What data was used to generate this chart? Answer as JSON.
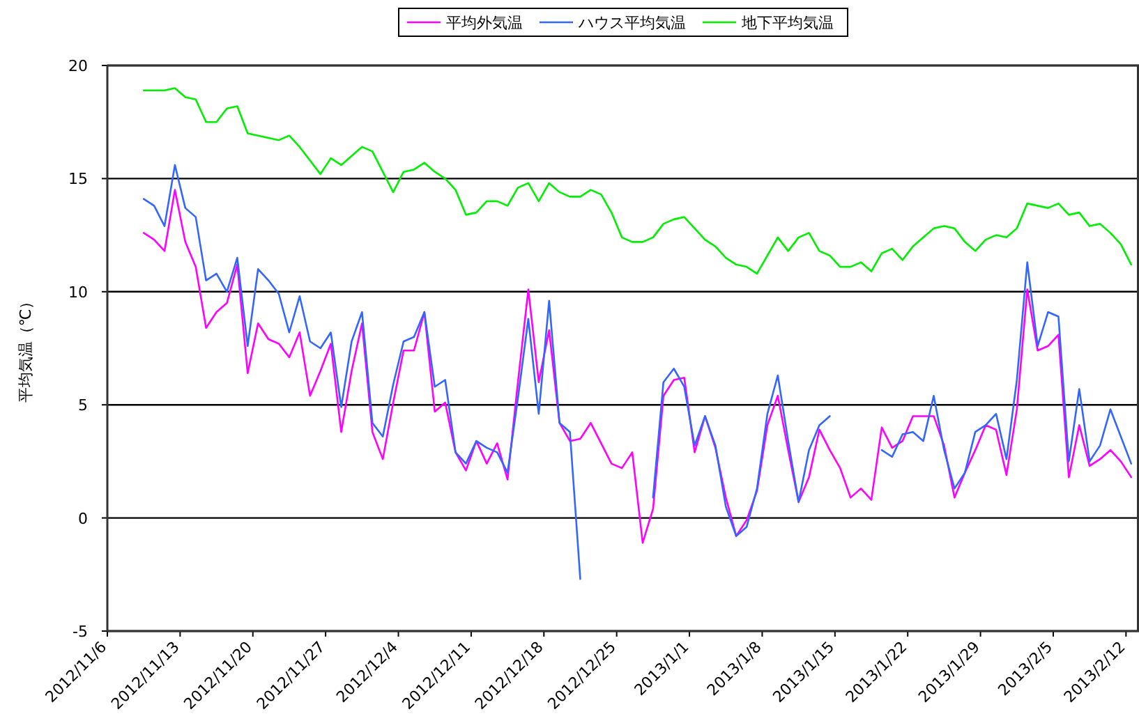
{
  "chart_data": {
    "type": "line",
    "ylabel": "平均気温（℃）",
    "legend": "top",
    "grid": "y",
    "xlim": [
      "2012-11-06",
      "2013-02-13T06:00"
    ],
    "xticks": [
      {
        "value": "2012-11-06",
        "label": "2012/11/6"
      },
      {
        "value": "2012-11-13",
        "label": "2012/11/13"
      },
      {
        "value": "2012-11-20",
        "label": "2012/11/20"
      },
      {
        "value": "2012-11-27",
        "label": "2012/11/27"
      },
      {
        "value": "2012-12-04",
        "label": "2012/12/4"
      },
      {
        "value": "2012-12-11",
        "label": "2012/12/11"
      },
      {
        "value": "2012-12-18",
        "label": "2012/12/18"
      },
      {
        "value": "2012-12-25",
        "label": "2012/12/25"
      },
      {
        "value": "2013-01-01",
        "label": "2013/1/1"
      },
      {
        "value": "2013-01-08",
        "label": "2013/1/8"
      },
      {
        "value": "2013-01-15",
        "label": "2013/1/15"
      },
      {
        "value": "2013-01-22",
        "label": "2013/1/22"
      },
      {
        "value": "2013-01-29",
        "label": "2013/1/29"
      },
      {
        "value": "2013-02-05",
        "label": "2013/2/5"
      },
      {
        "value": "2013-02-12",
        "label": "2013/2/12"
      }
    ],
    "ylim": [
      -5,
      20
    ],
    "yticks": [
      -5,
      0,
      5,
      10,
      15,
      20
    ],
    "x": [
      "2012-11-09T12:00",
      "2012-11-10T12:00",
      "2012-11-11T12:00",
      "2012-11-12T12:00",
      "2012-11-13T12:00",
      "2012-11-14T12:00",
      "2012-11-15T12:00",
      "2012-11-16T12:00",
      "2012-11-17T12:00",
      "2012-11-18T12:00",
      "2012-11-19T12:00",
      "2012-11-20T12:00",
      "2012-11-21T12:00",
      "2012-11-22T12:00",
      "2012-11-23T12:00",
      "2012-11-24T12:00",
      "2012-11-25T12:00",
      "2012-11-26T12:00",
      "2012-11-27T12:00",
      "2012-11-28T12:00",
      "2012-11-29T12:00",
      "2012-11-30T12:00",
      "2012-12-01T12:00",
      "2012-12-02T12:00",
      "2012-12-03T12:00",
      "2012-12-04T12:00",
      "2012-12-05T12:00",
      "2012-12-06T12:00",
      "2012-12-07T12:00",
      "2012-12-08T12:00",
      "2012-12-09T12:00",
      "2012-12-10T12:00",
      "2012-12-11T12:00",
      "2012-12-12T12:00",
      "2012-12-13T12:00",
      "2012-12-14T12:00",
      "2012-12-15T12:00",
      "2012-12-16T12:00",
      "2012-12-17T12:00",
      "2012-12-18T12:00",
      "2012-12-19T12:00",
      "2012-12-20T12:00",
      "2012-12-21T12:00",
      "2012-12-22T12:00",
      "2012-12-23T12:00",
      "2012-12-24T12:00",
      "2012-12-25T12:00",
      "2012-12-26T12:00",
      "2012-12-27T12:00",
      "2012-12-28T12:00",
      "2012-12-29T12:00",
      "2012-12-30T12:00",
      "2012-12-31T12:00",
      "2013-01-01T12:00",
      "2013-01-02T12:00",
      "2013-01-03T12:00",
      "2013-01-04T12:00",
      "2013-01-05T12:00",
      "2013-01-06T12:00",
      "2013-01-07T12:00",
      "2013-01-08T12:00",
      "2013-01-09T12:00",
      "2013-01-10T12:00",
      "2013-01-11T12:00",
      "2013-01-12T12:00",
      "2013-01-13T12:00",
      "2013-01-14T12:00",
      "2013-01-15T12:00",
      "2013-01-16T12:00",
      "2013-01-17T12:00",
      "2013-01-18T12:00",
      "2013-01-19T12:00",
      "2013-01-20T12:00",
      "2013-01-21T12:00",
      "2013-01-22T12:00",
      "2013-01-23T12:00",
      "2013-01-24T12:00",
      "2013-01-25T12:00",
      "2013-01-26T12:00",
      "2013-01-27T12:00",
      "2013-01-28T12:00",
      "2013-01-29T12:00",
      "2013-01-30T12:00",
      "2013-01-31T12:00",
      "2013-02-01T12:00",
      "2013-02-02T12:00",
      "2013-02-03T12:00",
      "2013-02-04T12:00",
      "2013-02-05T12:00",
      "2013-02-06T12:00",
      "2013-02-07T12:00",
      "2013-02-08T12:00",
      "2013-02-09T12:00",
      "2013-02-10T12:00",
      "2013-02-11T12:00",
      "2013-02-12T12:00"
    ],
    "series": [
      {
        "name": "平均外気温",
        "color": "#ff00ff",
        "values": [
          12.6,
          12.3,
          11.8,
          14.5,
          12.2,
          11.1,
          8.4,
          9.1,
          9.5,
          11.2,
          6.4,
          8.6,
          7.9,
          7.7,
          7.1,
          8.2,
          5.4,
          6.5,
          7.7,
          3.8,
          6.5,
          8.6,
          3.8,
          2.6,
          5.1,
          7.4,
          7.4,
          9.1,
          4.7,
          5.1,
          2.9,
          2.1,
          3.4,
          2.4,
          3.3,
          1.7,
          6.0,
          10.1,
          6.0,
          8.3,
          4.2,
          3.4,
          3.5,
          4.2,
          3.3,
          2.4,
          2.2,
          2.9,
          -1.1,
          0.4,
          5.4,
          6.1,
          6.2,
          2.9,
          4.5,
          3.1,
          0.9,
          -0.8,
          -0.1,
          1.2,
          4.1,
          5.4,
          3.0,
          0.7,
          1.8,
          3.9,
          3.0,
          2.2,
          0.9,
          1.3,
          0.8,
          4.0,
          3.1,
          3.4,
          4.5,
          4.5,
          4.5,
          3.2,
          0.9,
          2.0,
          3.0,
          4.1,
          3.9,
          1.9,
          4.8,
          10.1,
          7.4,
          7.6,
          8.1,
          1.8,
          4.1,
          2.3,
          2.6,
          3.0,
          2.5,
          1.8
        ]
      },
      {
        "name": "ハウス平均気温",
        "color": "#3366ff",
        "values": [
          14.1,
          13.8,
          12.9,
          15.6,
          13.7,
          13.3,
          10.5,
          10.8,
          10.0,
          11.5,
          7.6,
          11.0,
          10.5,
          9.9,
          8.2,
          9.8,
          7.8,
          7.5,
          8.2,
          4.9,
          7.8,
          9.1,
          4.2,
          3.6,
          5.9,
          7.8,
          8.0,
          9.1,
          5.8,
          6.1,
          2.9,
          2.4,
          3.4,
          3.1,
          2.9,
          2.0,
          5.3,
          8.8,
          4.6,
          9.6,
          4.2,
          3.8,
          -2.7,
          null,
          null,
          null,
          null,
          null,
          null,
          0.9,
          6.0,
          6.6,
          5.8,
          3.2,
          4.5,
          3.2,
          0.5,
          -0.8,
          -0.4,
          1.3,
          4.6,
          6.3,
          3.4,
          0.7,
          3.0,
          4.1,
          4.5,
          null,
          null,
          null,
          null,
          3.0,
          2.7,
          3.7,
          3.8,
          3.4,
          5.4,
          3.0,
          1.3,
          2.0,
          3.8,
          4.1,
          4.6,
          2.6,
          6.1,
          11.3,
          7.6,
          9.1,
          8.9,
          2.5,
          5.7,
          2.5,
          3.2,
          4.8,
          3.6,
          2.4
        ]
      },
      {
        "name": "地下平均気温",
        "color": "#00ee00",
        "values": [
          18.9,
          18.9,
          18.9,
          19.0,
          18.6,
          18.5,
          17.5,
          17.5,
          18.1,
          18.2,
          17.0,
          16.9,
          16.8,
          16.7,
          16.9,
          16.4,
          15.8,
          15.2,
          15.9,
          15.6,
          16.0,
          16.4,
          16.2,
          15.3,
          14.4,
          15.3,
          15.4,
          15.7,
          15.3,
          15.0,
          14.5,
          13.4,
          13.5,
          14.0,
          14.0,
          13.8,
          14.6,
          14.8,
          14.0,
          14.8,
          14.4,
          14.2,
          14.2,
          14.5,
          14.3,
          13.5,
          12.4,
          12.2,
          12.2,
          12.4,
          13.0,
          13.2,
          13.3,
          12.8,
          12.3,
          12.0,
          11.5,
          11.2,
          11.1,
          10.8,
          11.6,
          12.4,
          11.8,
          12.4,
          12.6,
          11.8,
          11.6,
          11.1,
          11.1,
          11.3,
          10.9,
          11.7,
          11.9,
          11.4,
          12.0,
          12.4,
          12.8,
          12.9,
          12.8,
          12.2,
          11.8,
          12.3,
          12.5,
          12.4,
          12.8,
          13.9,
          13.8,
          13.7,
          13.9,
          13.4,
          13.5,
          12.9,
          13.0,
          12.6,
          12.1,
          11.2
        ]
      }
    ]
  }
}
